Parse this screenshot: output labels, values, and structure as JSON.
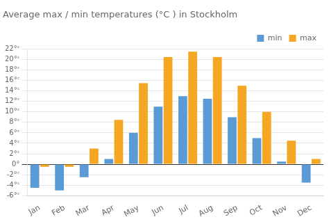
{
  "chart_data": {
    "type": "bar",
    "title": "Average max / min temperatures (°C ) in Stockholm",
    "categories": [
      "Jan",
      "Feb",
      "Mar",
      "Apr",
      "May",
      "Jun",
      "Jul",
      "Aug",
      "Sep",
      "Oct",
      "Nov",
      "Dec"
    ],
    "series": [
      {
        "name": "min",
        "color": "#5b9bd5",
        "values": [
          -4.5,
          -5.0,
          -2.5,
          1.0,
          6.0,
          11.0,
          13.0,
          12.5,
          9.0,
          5.0,
          0.5,
          -3.5
        ]
      },
      {
        "name": "max",
        "color": "#f5a623",
        "values": [
          -0.5,
          -0.5,
          3.0,
          8.5,
          15.5,
          20.5,
          21.5,
          20.5,
          15.0,
          10.0,
          4.5,
          1.0
        ]
      }
    ],
    "ylim": [
      -6,
      22
    ],
    "yticks": [
      {
        "value": -6,
        "label": "-6°ᶜ"
      },
      {
        "value": -4,
        "label": "-4°ᶜ"
      },
      {
        "value": -2,
        "label": "-2°ᶜ"
      },
      {
        "value": 0,
        "label": "0°"
      },
      {
        "value": 2,
        "label": "2°ᶜ"
      },
      {
        "value": 4,
        "label": "4°ᶜ"
      },
      {
        "value": 6,
        "label": "6°ᶜ"
      },
      {
        "value": 8,
        "label": "8°ᶜ"
      },
      {
        "value": 10,
        "label": "10°ᶜ"
      },
      {
        "value": 12,
        "label": "12°ᶜ"
      },
      {
        "value": 14,
        "label": "14°ᶜ"
      },
      {
        "value": 16,
        "label": "16°ᶜ"
      },
      {
        "value": 18,
        "label": "18°ᶜ"
      },
      {
        "value": 20,
        "label": "20°ᶜ"
      },
      {
        "value": 22,
        "label": "22°ᶜ"
      }
    ],
    "grid": true,
    "legend": "upper right"
  }
}
